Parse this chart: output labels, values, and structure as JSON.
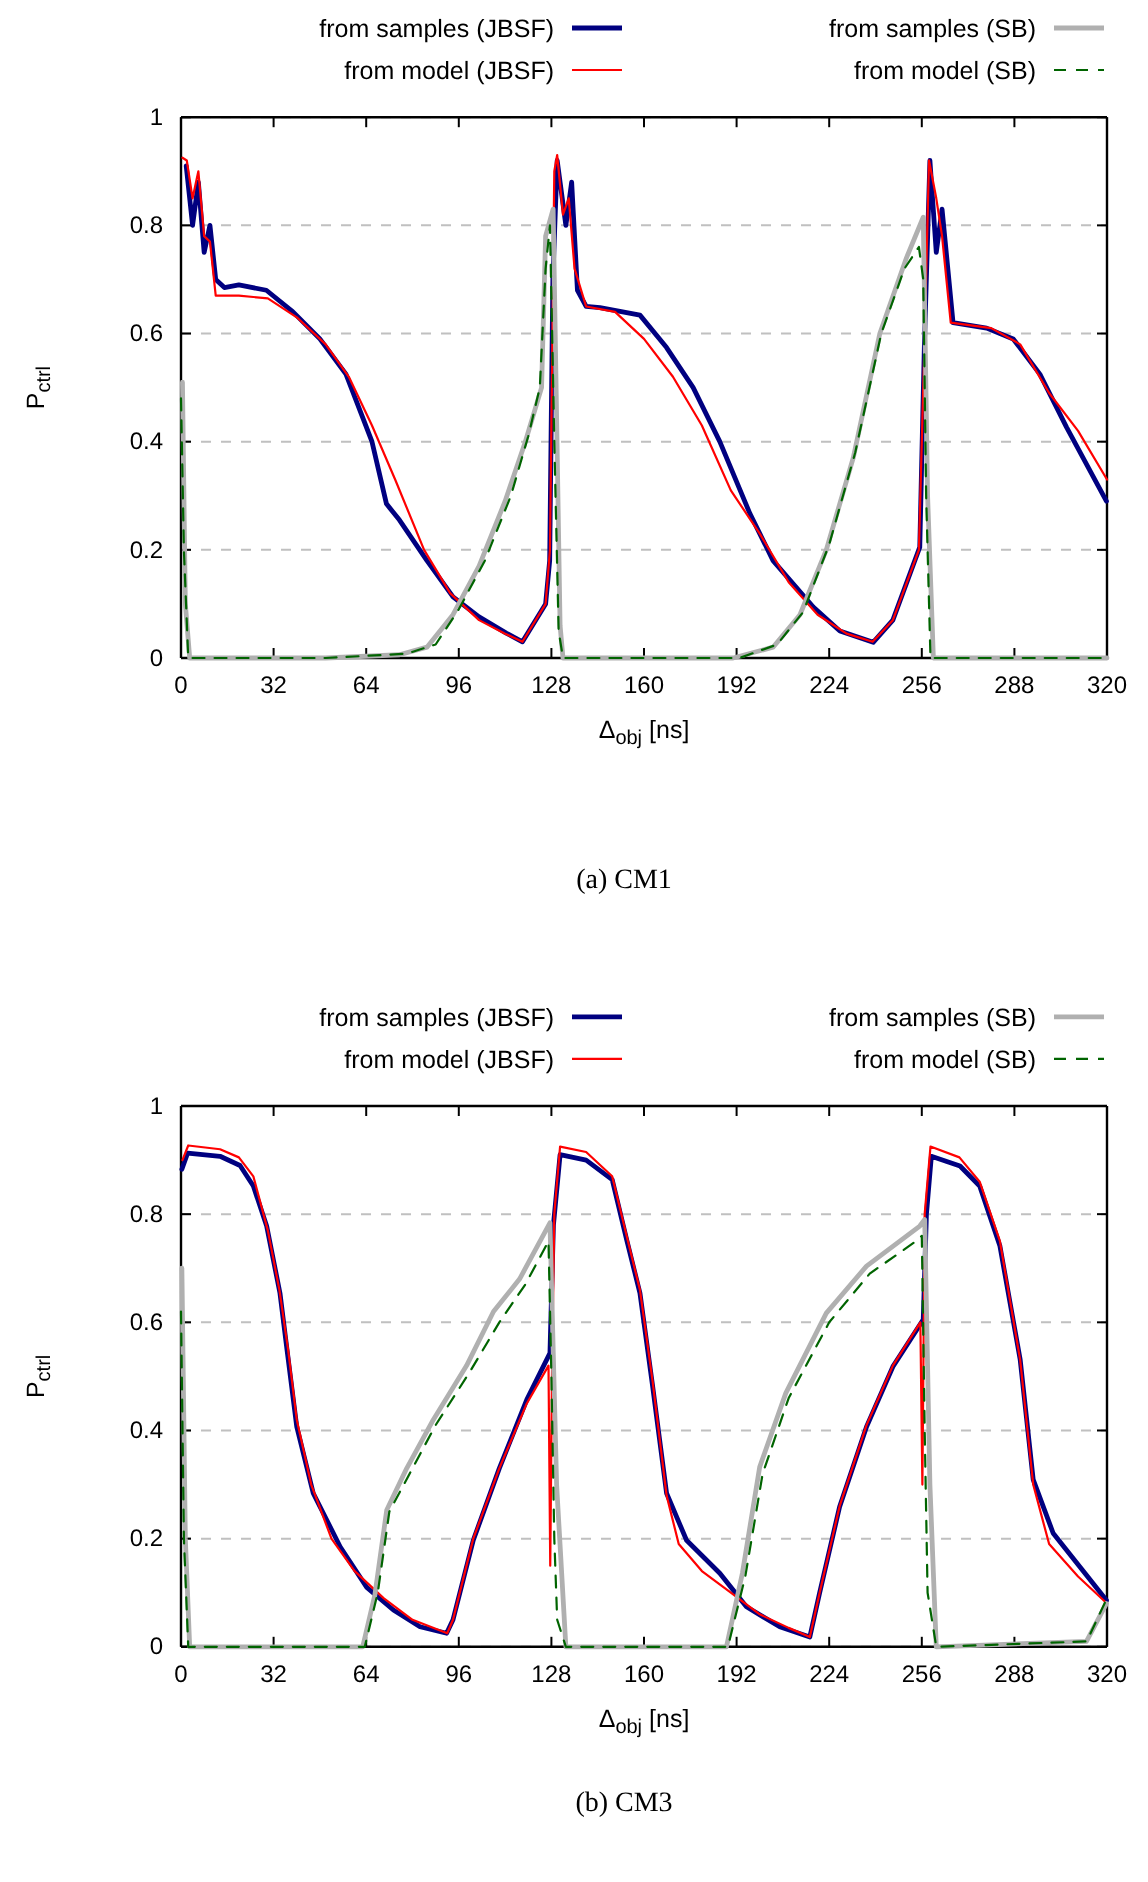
{
  "chart_data": [
    {
      "type": "line",
      "title": "(a) CM1",
      "xlabel": "Δ$_{obj}$ [ns]",
      "ylabel": "P$_{ctrl}$",
      "xlim": [
        0,
        320
      ],
      "xticks": [
        0,
        32,
        64,
        96,
        128,
        160,
        192,
        224,
        256,
        288,
        320
      ],
      "ylim": [
        0,
        1
      ],
      "yticks": [
        0,
        0.2,
        0.4,
        0.6,
        0.8,
        1
      ],
      "grid": "y",
      "legend": "top",
      "series": [
        {
          "name": "from samples (JBSF)",
          "color": "#000080",
          "line_style": "solid",
          "x": [
            1.8,
            4,
            6,
            8,
            10,
            12,
            15,
            20,
            29.5,
            38.7,
            48,
            57,
            66,
            71,
            75.5,
            85,
            94,
            103,
            112.4,
            118,
            126,
            127.4,
            128.5,
            130,
            133,
            135,
            137,
            140,
            144.8,
            158.6,
            167.8,
            177,
            186.2,
            196.6,
            204.6,
            218.5,
            227.7,
            239.2,
            246,
            255.3,
            256.9,
            258.8,
            261,
            263,
            266.8,
            278.4,
            287.6,
            296.8,
            306,
            319.8
          ],
          "values": [
            0.91,
            0.8,
            0.88,
            0.75,
            0.8,
            0.7,
            0.685,
            0.69,
            0.68,
            0.64,
            0.59,
            0.525,
            0.4,
            0.285,
            0.255,
            0.18,
            0.113,
            0.076,
            0.046,
            0.03,
            0.1,
            0.18,
            0.7,
            0.92,
            0.8,
            0.88,
            0.68,
            0.65,
            0.648,
            0.634,
            0.574,
            0.5,
            0.4,
            0.267,
            0.18,
            0.094,
            0.05,
            0.029,
            0.07,
            0.205,
            0.58,
            0.92,
            0.75,
            0.83,
            0.62,
            0.61,
            0.59,
            0.525,
            0.427,
            0.29
          ]
        },
        {
          "name": "from model (JBSF)",
          "color": "#ff0000",
          "line_style": "solid",
          "x": [
            0.5,
            2,
            4,
            6,
            8,
            10,
            12,
            20,
            30,
            40,
            50,
            58,
            66,
            74,
            84,
            93,
            103,
            112,
            118,
            126,
            127.5,
            129,
            130,
            132,
            134,
            136,
            140,
            150,
            160,
            170,
            180,
            190,
            200,
            210,
            220,
            230,
            239,
            246,
            255,
            257,
            258.5,
            261,
            263,
            266,
            280,
            290,
            300,
            310,
            320
          ],
          "values": [
            0.925,
            0.92,
            0.85,
            0.9,
            0.78,
            0.77,
            0.67,
            0.67,
            0.665,
            0.63,
            0.58,
            0.52,
            0.43,
            0.33,
            0.2,
            0.12,
            0.07,
            0.045,
            0.03,
            0.1,
            0.2,
            0.9,
            0.93,
            0.82,
            0.85,
            0.72,
            0.65,
            0.64,
            0.59,
            0.52,
            0.43,
            0.31,
            0.23,
            0.14,
            0.08,
            0.045,
            0.03,
            0.07,
            0.2,
            0.6,
            0.92,
            0.85,
            0.78,
            0.62,
            0.61,
            0.58,
            0.49,
            0.42,
            0.33
          ]
        },
        {
          "name": "from samples (SB)",
          "color": "#b0b0b0",
          "line_style": "solid",
          "x": [
            0.5,
            1.5,
            3,
            50,
            75.5,
            85,
            94,
            103,
            112,
            119,
            124.6,
            126,
            128.6,
            131,
            132,
            176,
            190.8,
            204.6,
            213.9,
            223,
            232.3,
            241.5,
            250.7,
            256.5,
            258,
            260,
            320
          ],
          "values": [
            0.51,
            0.1,
            0,
            0,
            0.006,
            0.02,
            0.08,
            0.17,
            0.29,
            0.4,
            0.5,
            0.78,
            0.83,
            0.06,
            0,
            0,
            0,
            0.02,
            0.08,
            0.2,
            0.37,
            0.6,
            0.74,
            0.815,
            0.3,
            0,
            0
          ]
        },
        {
          "name": "from model (SB)",
          "color": "#006400",
          "line_style": "dashed",
          "x": [
            0,
            1,
            2.5,
            50,
            78,
            88,
            96,
            105,
            114,
            120,
            124,
            126,
            127.5,
            129,
            130.5,
            132,
            178,
            193,
            206,
            215,
            224,
            233,
            242,
            250,
            255,
            256.5,
            257.5,
            259,
            320
          ],
          "values": [
            0.48,
            0.2,
            0,
            0,
            0.008,
            0.025,
            0.09,
            0.18,
            0.3,
            0.41,
            0.5,
            0.72,
            0.8,
            0.4,
            0.05,
            0,
            0,
            0,
            0.025,
            0.085,
            0.21,
            0.38,
            0.6,
            0.72,
            0.76,
            0.7,
            0.3,
            0,
            0
          ]
        }
      ]
    },
    {
      "type": "line",
      "title": "(b) CM3",
      "xlabel": "Δ$_{obj}$ [ns]",
      "ylabel": "P$_{ctrl}$",
      "xlim": [
        0,
        320
      ],
      "xticks": [
        0,
        32,
        64,
        96,
        128,
        160,
        192,
        224,
        256,
        288,
        320
      ],
      "ylim": [
        0,
        1
      ],
      "yticks": [
        0,
        0.2,
        0.4,
        0.6,
        0.8,
        1
      ],
      "grid": "y",
      "legend": "top",
      "series": [
        {
          "name": "from samples (JBSF)",
          "color": "#000080",
          "line_style": "solid",
          "x": [
            0.3,
            2.3,
            13.5,
            20.4,
            25,
            29.6,
            34.2,
            36.5,
            40,
            45.7,
            55,
            64.2,
            73.4,
            82.6,
            91.8,
            94,
            101,
            110,
            119.5,
            127.5,
            128.7,
            131,
            140,
            149,
            154,
            158.6,
            163,
            167.8,
            174.7,
            186.2,
            195.4,
            206.9,
            217.3,
            220.7,
            227.6,
            236.9,
            246,
            256.5,
            257.6,
            259.3,
            269.2,
            276,
            283,
            290,
            294.5,
            301.4,
            310.6,
            319.8
          ],
          "values": [
            0.883,
            0.913,
            0.907,
            0.89,
            0.852,
            0.778,
            0.654,
            0.555,
            0.407,
            0.284,
            0.185,
            0.11,
            0.068,
            0.037,
            0.025,
            0.05,
            0.197,
            0.33,
            0.457,
            0.543,
            0.78,
            0.91,
            0.9,
            0.864,
            0.753,
            0.654,
            0.481,
            0.284,
            0.197,
            0.136,
            0.074,
            0.037,
            0.018,
            0.1,
            0.259,
            0.407,
            0.518,
            0.605,
            0.8,
            0.907,
            0.889,
            0.852,
            0.741,
            0.531,
            0.309,
            0.21,
            0.148,
            0.086
          ]
        },
        {
          "name": "from model (JBSF)",
          "color": "#ff0000",
          "line_style": "solid",
          "x": [
            0.5,
            2.5,
            13.5,
            20,
            25,
            30,
            34,
            37,
            40,
            45,
            52,
            60,
            70,
            80,
            92,
            94,
            101,
            110,
            119.5,
            127,
            127.6,
            128.2,
            129,
            131,
            140,
            149,
            154,
            158.6,
            163,
            167.8,
            172,
            180,
            190,
            200,
            210,
            217.3,
            220.7,
            227.6,
            236.9,
            246,
            255.5,
            256.2,
            257,
            259,
            269,
            276,
            283,
            290,
            294.5,
            300,
            310,
            320
          ],
          "values": [
            0.9,
            0.927,
            0.92,
            0.905,
            0.87,
            0.77,
            0.66,
            0.55,
            0.42,
            0.3,
            0.2,
            0.14,
            0.09,
            0.05,
            0.025,
            0.05,
            0.2,
            0.33,
            0.45,
            0.52,
            0.15,
            0.5,
            0.8,
            0.925,
            0.915,
            0.87,
            0.76,
            0.66,
            0.49,
            0.28,
            0.19,
            0.14,
            0.1,
            0.06,
            0.035,
            0.018,
            0.1,
            0.26,
            0.41,
            0.52,
            0.6,
            0.3,
            0.8,
            0.925,
            0.905,
            0.86,
            0.75,
            0.53,
            0.3,
            0.19,
            0.13,
            0.08
          ]
        },
        {
          "name": "from samples (SB)",
          "color": "#b0b0b0",
          "line_style": "solid",
          "x": [
            0.3,
            1.5,
            3,
            40,
            62.8,
            67,
            71.1,
            78,
            87.2,
            98.7,
            108,
            117,
            127.5,
            129.8,
            133,
            188.5,
            194,
            200,
            209,
            223,
            236.9,
            255.3,
            257,
            258.8,
            261,
            312.9,
            319.8
          ],
          "values": [
            0.7,
            0.2,
            0,
            0,
            0,
            0.096,
            0.253,
            0.33,
            0.42,
            0.52,
            0.62,
            0.68,
            0.784,
            0.3,
            0,
            0,
            0.136,
            0.333,
            0.469,
            0.617,
            0.704,
            0.778,
            0.79,
            0.3,
            0,
            0.01,
            0.08
          ]
        },
        {
          "name": "from model (SB)",
          "color": "#006400",
          "line_style": "dashed",
          "x": [
            0,
            1,
            2.5,
            40,
            63.5,
            68,
            72,
            79,
            88,
            100,
            110,
            119,
            127,
            128,
            129,
            130,
            133,
            189,
            195,
            201,
            210,
            224,
            238,
            254,
            256,
            257,
            258,
            261,
            313,
            320
          ],
          "values": [
            0.62,
            0.2,
            0,
            0,
            0,
            0.1,
            0.25,
            0.32,
            0.41,
            0.51,
            0.6,
            0.67,
            0.75,
            0.5,
            0.2,
            0.05,
            0,
            0,
            0.13,
            0.32,
            0.46,
            0.6,
            0.69,
            0.75,
            0.76,
            0.4,
            0.1,
            0,
            0.01,
            0.09
          ]
        }
      ]
    }
  ]
}
